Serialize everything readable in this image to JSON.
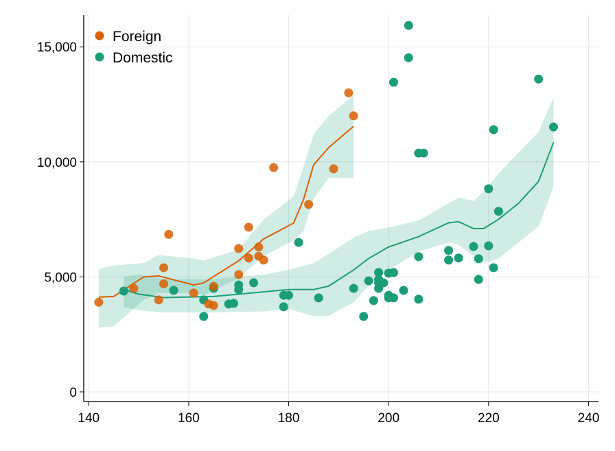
{
  "chart_data": {
    "type": "scatter",
    "title": "",
    "xlabel": "",
    "ylabel": "",
    "xlim": [
      139,
      242
    ],
    "ylim": [
      -420,
      16380
    ],
    "xticks": [
      140,
      160,
      180,
      200,
      220,
      240
    ],
    "yticks": [
      0,
      5000,
      10000,
      15000
    ],
    "ytick_labels": [
      "0",
      "5,000",
      "10,000",
      "15,000"
    ],
    "grid": true,
    "legend_position": "top-left",
    "series": [
      {
        "name": "Foreign",
        "color": "#d95f02",
        "points": [
          [
            142,
            3900
          ],
          [
            149,
            4500
          ],
          [
            156,
            6850
          ],
          [
            155,
            5400
          ],
          [
            155,
            4700
          ],
          [
            154,
            4000
          ],
          [
            161,
            4300
          ],
          [
            164,
            3820
          ],
          [
            165,
            3760
          ],
          [
            165,
            4590
          ],
          [
            170,
            6235
          ],
          [
            170,
            5100
          ],
          [
            172,
            7160
          ],
          [
            172,
            5820
          ],
          [
            174,
            6300
          ],
          [
            174,
            5900
          ],
          [
            175,
            5730
          ],
          [
            177,
            9750
          ],
          [
            184,
            8150
          ],
          [
            189,
            9700
          ],
          [
            192,
            13000
          ],
          [
            193,
            12000
          ]
        ],
        "fit": [
          [
            142,
            4120
          ],
          [
            145,
            4150
          ],
          [
            151,
            5000
          ],
          [
            154,
            5040
          ],
          [
            161,
            4650
          ],
          [
            163,
            4740
          ],
          [
            170,
            5700
          ],
          [
            175,
            6650
          ],
          [
            181,
            7340
          ],
          [
            183,
            8380
          ],
          [
            185,
            9870
          ],
          [
            188,
            10620
          ],
          [
            193,
            11550
          ]
        ],
        "band_upper": [
          5350,
          5500,
          5600,
          5950,
          5800,
          5700,
          6200,
          7500,
          8500,
          9800,
          11200,
          12000,
          12900
        ],
        "band_lower": [
          2800,
          2850,
          4000,
          4300,
          4300,
          4200,
          4950,
          5900,
          6600,
          7000,
          8400,
          9300,
          9300
        ]
      },
      {
        "name": "Domestic",
        "color": "#1b9e77",
        "points": [
          [
            147,
            4385
          ],
          [
            157,
            4415
          ],
          [
            163,
            3280
          ],
          [
            163,
            4000
          ],
          [
            165,
            4500
          ],
          [
            168,
            3820
          ],
          [
            169,
            3850
          ],
          [
            170,
            4650
          ],
          [
            170,
            4445
          ],
          [
            173,
            4745
          ],
          [
            179,
            3700
          ],
          [
            179,
            4200
          ],
          [
            180,
            4200
          ],
          [
            182,
            6500
          ],
          [
            186,
            4090
          ],
          [
            193,
            4500
          ],
          [
            195,
            3280
          ],
          [
            196,
            4830
          ],
          [
            197,
            3970
          ],
          [
            198,
            5190
          ],
          [
            198,
            4890
          ],
          [
            198,
            4740
          ],
          [
            198,
            4500
          ],
          [
            199,
            4740
          ],
          [
            200,
            5160
          ],
          [
            200,
            4200
          ],
          [
            200,
            4090
          ],
          [
            201,
            4090
          ],
          [
            201,
            5190
          ],
          [
            203,
            4415
          ],
          [
            206,
            5880
          ],
          [
            206,
            4030
          ],
          [
            201,
            13460
          ],
          [
            204,
            15930
          ],
          [
            204,
            14530
          ],
          [
            206,
            10380
          ],
          [
            207,
            10380
          ],
          [
            212,
            6150
          ],
          [
            212,
            5730
          ],
          [
            214,
            5820
          ],
          [
            217,
            6320
          ],
          [
            218,
            5790
          ],
          [
            218,
            4890
          ],
          [
            220,
            6350
          ],
          [
            220,
            8830
          ],
          [
            221,
            5400
          ],
          [
            221,
            11400
          ],
          [
            222,
            7850
          ],
          [
            230,
            13600
          ],
          [
            233,
            11515
          ]
        ],
        "fit": [
          [
            147,
            4450
          ],
          [
            150,
            4250
          ],
          [
            155,
            4100
          ],
          [
            165,
            4150
          ],
          [
            175,
            4350
          ],
          [
            180,
            4450
          ],
          [
            185,
            4450
          ],
          [
            188,
            4600
          ],
          [
            193,
            5300
          ],
          [
            196,
            5800
          ],
          [
            200,
            6300
          ],
          [
            206,
            6750
          ],
          [
            212,
            7350
          ],
          [
            214,
            7400
          ],
          [
            217,
            7100
          ],
          [
            219,
            7100
          ],
          [
            222,
            7500
          ],
          [
            226,
            8200
          ],
          [
            230,
            9150
          ],
          [
            233,
            10850
          ]
        ],
        "band_upper": [
          5000,
          5100,
          4900,
          4900,
          5100,
          5300,
          5600,
          6000,
          6700,
          7000,
          7150,
          7450,
          8200,
          8450,
          8300,
          8700,
          9500,
          10400,
          11300,
          12800
        ],
        "band_lower": [
          3700,
          3550,
          3450,
          3450,
          3500,
          3600,
          3300,
          3300,
          3900,
          4600,
          5300,
          6100,
          6500,
          6400,
          5900,
          5600,
          5800,
          6500,
          7200,
          8900
        ]
      }
    ]
  }
}
